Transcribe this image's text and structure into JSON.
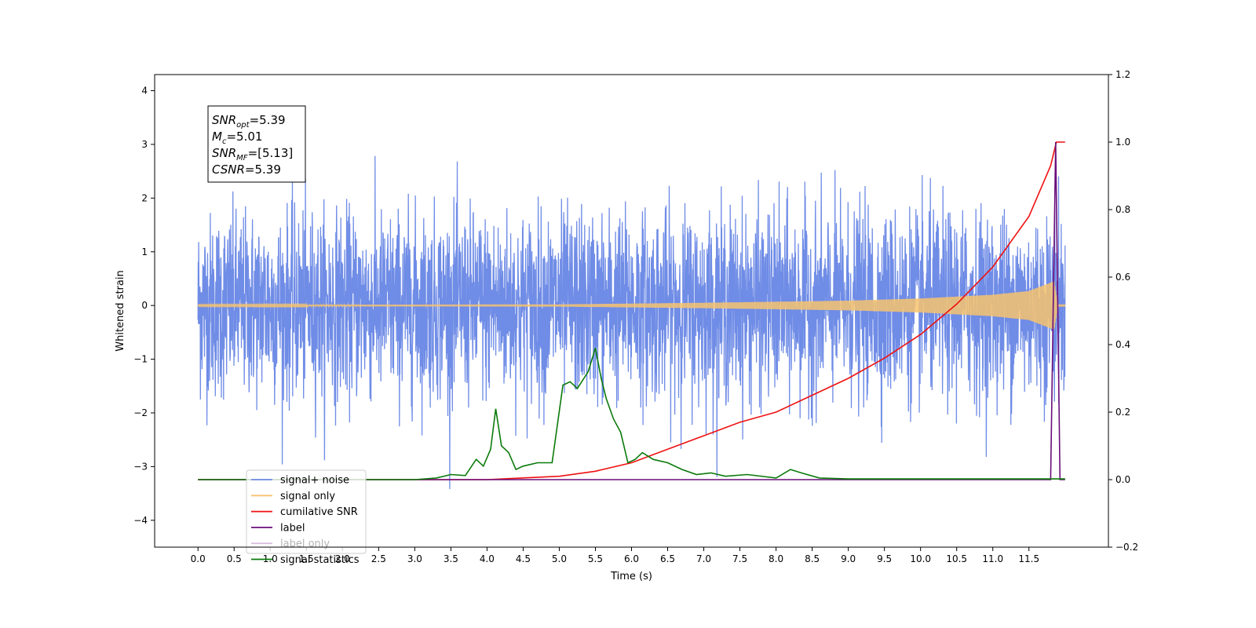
{
  "chart_data": {
    "type": "line",
    "xlabel": "Time (s)",
    "ylabel": "Whitened strain",
    "xlim": [
      -0.6,
      12.6
    ],
    "ylim": [
      -4.5,
      4.3
    ],
    "y2lim": [
      -0.2,
      1.2
    ],
    "xticks": [
      "0.0",
      "0.5",
      "1.0",
      "1.5",
      "2.0",
      "2.5",
      "3.0",
      "3.5",
      "4.0",
      "4.5",
      "5.0",
      "5.5",
      "6.0",
      "6.5",
      "7.0",
      "7.5",
      "8.0",
      "8.5",
      "9.0",
      "9.5",
      "10.0",
      "10.5",
      "11.0",
      "11.5"
    ],
    "yticks": [
      "−4",
      "−3",
      "−2",
      "−1",
      "0",
      "1",
      "2",
      "3",
      "4"
    ],
    "y2ticks": [
      "−0.2",
      "0.0",
      "0.2",
      "0.4",
      "0.6",
      "0.8",
      "1.0",
      "1.2"
    ],
    "legend_position": "lower-left",
    "info_box": {
      "lines": [
        {
          "main": "SNR",
          "sub": "opt",
          "value": "=5.39"
        },
        {
          "main": "M",
          "sub": "c",
          "value": "=5.01"
        },
        {
          "main": "SNR",
          "sub": "MF",
          "value": "=[5.13]"
        },
        {
          "main": "CSNR",
          "sub": "",
          "value": "=5.39"
        }
      ]
    },
    "series": [
      {
        "name": "signal+ noise",
        "color": "#6f8ce6",
        "axis": "left",
        "kind": "noise",
        "duration": 12.0,
        "noise_sigma": 0.85
      },
      {
        "name": "signal only",
        "color": "#f7c36f",
        "axis": "left",
        "kind": "chirp",
        "chirp_envelope": {
          "t": [
            0,
            5,
            7,
            9,
            10,
            11,
            11.5,
            11.85,
            11.9,
            12.0
          ],
          "amp": [
            0.01,
            0.02,
            0.05,
            0.09,
            0.13,
            0.2,
            0.27,
            0.45,
            0.02,
            0.02
          ]
        }
      },
      {
        "name": "cumilative SNR",
        "color": "#ee1111",
        "axis": "right",
        "x": [
          0,
          4.0,
          5.0,
          5.5,
          6.0,
          6.5,
          7.0,
          7.5,
          8.0,
          8.5,
          9.0,
          9.5,
          10.0,
          10.5,
          11.0,
          11.5,
          11.8,
          11.88,
          11.9,
          12.0
        ],
        "values": [
          0,
          0,
          0.01,
          0.025,
          0.05,
          0.09,
          0.13,
          0.17,
          0.2,
          0.25,
          0.3,
          0.36,
          0.43,
          0.52,
          0.63,
          0.78,
          0.93,
          1.0,
          1.0,
          1.0
        ]
      },
      {
        "name": "label",
        "color": "#6a0e7a",
        "axis": "right",
        "x": [
          0,
          11.8,
          11.87,
          11.93,
          12.0
        ],
        "values": [
          0,
          0,
          1.0,
          0,
          0
        ]
      },
      {
        "name": "label only",
        "color": "#6a0e7a",
        "axis": "right",
        "hidden_behind_legend": true,
        "x": [],
        "values": []
      },
      {
        "name": "signal statistics",
        "color": "#0a7a0a",
        "axis": "right",
        "x": [
          0,
          3.0,
          3.3,
          3.5,
          3.7,
          3.85,
          3.95,
          4.05,
          4.12,
          4.2,
          4.3,
          4.4,
          4.5,
          4.7,
          4.9,
          5.05,
          5.15,
          5.25,
          5.4,
          5.5,
          5.58,
          5.65,
          5.75,
          5.85,
          5.95,
          6.05,
          6.15,
          6.3,
          6.5,
          6.7,
          6.9,
          7.1,
          7.3,
          7.6,
          8.0,
          8.2,
          8.35,
          8.6,
          9.0,
          12.0
        ],
        "values": [
          0,
          0,
          0.005,
          0.015,
          0.012,
          0.06,
          0.04,
          0.09,
          0.21,
          0.1,
          0.08,
          0.03,
          0.04,
          0.05,
          0.05,
          0.28,
          0.29,
          0.27,
          0.32,
          0.39,
          0.3,
          0.24,
          0.18,
          0.14,
          0.05,
          0.06,
          0.08,
          0.06,
          0.05,
          0.03,
          0.015,
          0.02,
          0.01,
          0.015,
          0.005,
          0.03,
          0.02,
          0.005,
          0.002,
          0.002
        ]
      }
    ]
  }
}
